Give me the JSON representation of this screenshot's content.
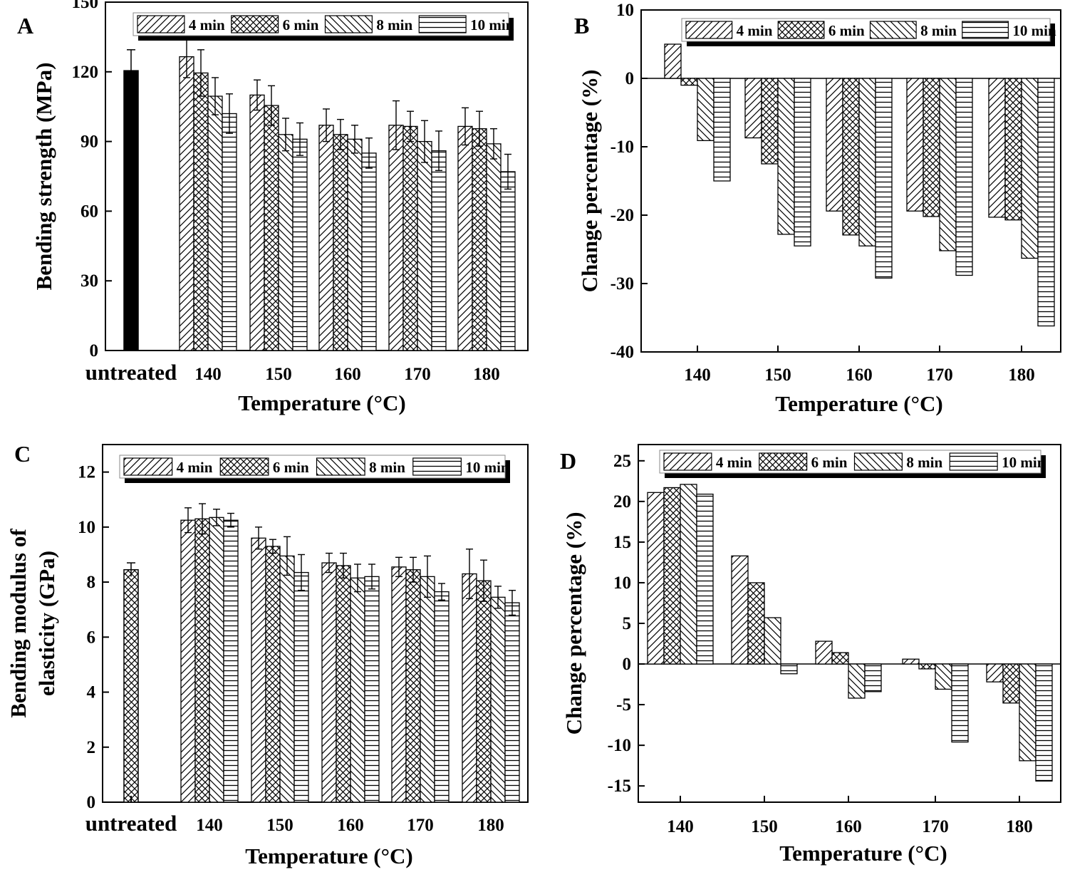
{
  "figure": {
    "legend_labels": [
      "4 min",
      "6 min",
      "8 min",
      "10 min"
    ]
  },
  "chart_data": [
    {
      "panel": "A",
      "type": "bar",
      "xlabel": "Temperature (°C)",
      "ylabel": "Bending strength (MPa)",
      "ylim": [
        0,
        150
      ],
      "yticks": [
        0,
        30,
        60,
        90,
        120,
        150
      ],
      "legend_position": "top",
      "control": {
        "label": "untreated",
        "value": 120.5,
        "error": 9,
        "pattern": "solid"
      },
      "categories": [
        "140",
        "150",
        "160",
        "170",
        "180"
      ],
      "series": [
        {
          "name": "4 min",
          "values": [
            126.5,
            110,
            97,
            97,
            96.5
          ],
          "errors": [
            9,
            6.5,
            7,
            10.5,
            8
          ]
        },
        {
          "name": "6 min",
          "values": [
            119.5,
            105.5,
            93,
            96.5,
            95.5
          ],
          "errors": [
            10,
            8.5,
            6.5,
            6.5,
            7.5
          ]
        },
        {
          "name": "8 min",
          "values": [
            109.5,
            93,
            91,
            90,
            89
          ],
          "errors": [
            8,
            7,
            6,
            9,
            6.5
          ]
        },
        {
          "name": "10 min",
          "values": [
            102,
            91,
            85,
            86,
            77
          ],
          "errors": [
            8.5,
            7,
            6.5,
            8.5,
            7.5
          ]
        }
      ]
    },
    {
      "panel": "B",
      "type": "bar",
      "xlabel": "Temperature (°C)",
      "ylabel": "Change percentage (%)",
      "ylim": [
        -40,
        10
      ],
      "yticks": [
        -40,
        -30,
        -20,
        -10,
        0,
        10
      ],
      "legend_position": "top",
      "categories": [
        "140",
        "150",
        "160",
        "170",
        "180"
      ],
      "series": [
        {
          "name": "4 min",
          "values": [
            5,
            -8.7,
            -19.4,
            -19.4,
            -20.3
          ]
        },
        {
          "name": "6 min",
          "values": [
            -1,
            -12.5,
            -22.9,
            -20.2,
            -20.7
          ]
        },
        {
          "name": "8 min",
          "values": [
            -9.1,
            -22.8,
            -24.5,
            -25.2,
            -26.3
          ]
        },
        {
          "name": "10 min",
          "values": [
            -15,
            -24.5,
            -29.2,
            -28.8,
            -36.2
          ]
        }
      ]
    },
    {
      "panel": "C",
      "type": "bar",
      "xlabel": "Temperature (°C)",
      "ylabel": "Bending modulus of elasticity (GPa)",
      "ylabel_lines": [
        "Bending modulus of",
        "elasticity (GPa)"
      ],
      "ylim": [
        0,
        13
      ],
      "yticks": [
        0,
        2,
        4,
        6,
        8,
        10,
        12
      ],
      "legend_position": "top",
      "control": {
        "label": "untreated",
        "value": 8.45,
        "error": 0.25,
        "pattern": "crosshatch"
      },
      "categories": [
        "140",
        "150",
        "160",
        "170",
        "180"
      ],
      "series": [
        {
          "name": "4 min",
          "values": [
            10.25,
            9.6,
            8.7,
            8.55,
            8.3
          ],
          "errors": [
            0.45,
            0.4,
            0.35,
            0.35,
            0.9
          ]
        },
        {
          "name": "6 min",
          "values": [
            10.3,
            9.3,
            8.6,
            8.45,
            8.05
          ],
          "errors": [
            0.55,
            0.25,
            0.45,
            0.45,
            0.75
          ]
        },
        {
          "name": "8 min",
          "values": [
            10.35,
            8.95,
            8.15,
            8.2,
            7.45
          ],
          "errors": [
            0.3,
            0.7,
            0.5,
            0.75,
            0.4
          ]
        },
        {
          "name": "10 min",
          "values": [
            10.25,
            8.35,
            8.2,
            7.65,
            7.25
          ],
          "errors": [
            0.25,
            0.65,
            0.45,
            0.3,
            0.45
          ]
        }
      ]
    },
    {
      "panel": "D",
      "type": "bar",
      "xlabel": "Temperature (°C)",
      "ylabel": "Change percentage (%)",
      "ylim": [
        -17,
        27
      ],
      "yticks": [
        -15,
        -10,
        -5,
        0,
        5,
        10,
        15,
        20,
        25
      ],
      "legend_position": "top",
      "categories": [
        "140",
        "150",
        "160",
        "170",
        "180"
      ],
      "series": [
        {
          "name": "4 min",
          "values": [
            21.1,
            13.3,
            2.8,
            0.6,
            -2.2
          ]
        },
        {
          "name": "6 min",
          "values": [
            21.7,
            10,
            1.4,
            -0.6,
            -4.8
          ]
        },
        {
          "name": "8 min",
          "values": [
            22.1,
            5.7,
            -4.2,
            -3.1,
            -11.9
          ]
        },
        {
          "name": "10 min",
          "values": [
            20.9,
            -1.2,
            -3.4,
            -9.6,
            -14.4
          ]
        }
      ]
    }
  ]
}
